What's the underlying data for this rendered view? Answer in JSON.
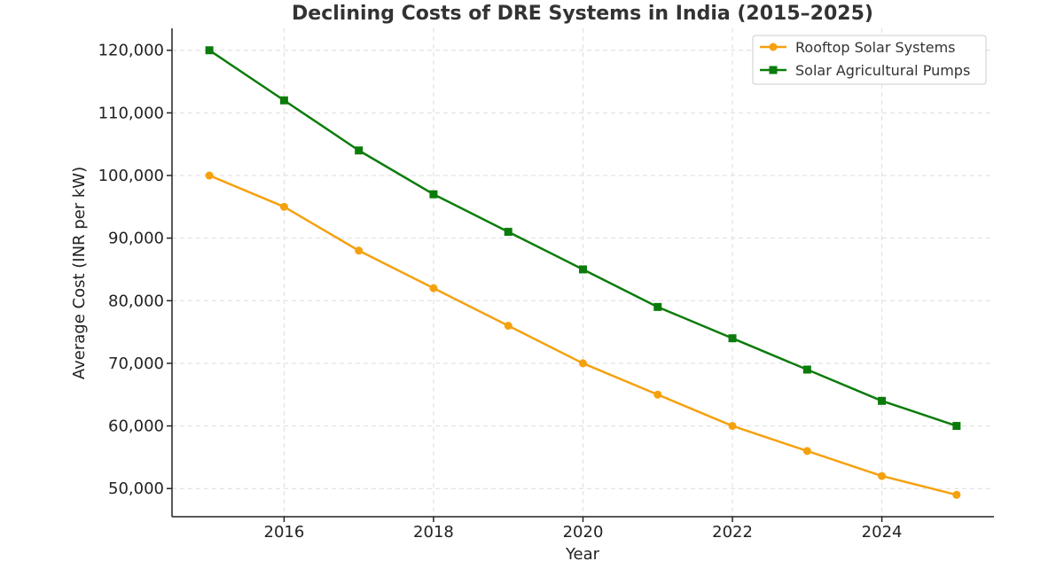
{
  "chart_data": {
    "type": "line",
    "title": "Declining Costs of DRE Systems in India (2015–2025)",
    "xlabel": "Year",
    "ylabel": "Average Cost (INR per kW)",
    "x": [
      2015,
      2016,
      2017,
      2018,
      2019,
      2020,
      2021,
      2022,
      2023,
      2024,
      2025
    ],
    "x_ticks": [
      2016,
      2018,
      2020,
      2022,
      2024
    ],
    "x_tick_labels": [
      "2016",
      "2018",
      "2020",
      "2022",
      "2024"
    ],
    "y_ticks": [
      50000,
      60000,
      70000,
      80000,
      90000,
      100000,
      110000,
      120000
    ],
    "y_tick_labels": [
      "50,000",
      "60,000",
      "70,000",
      "80,000",
      "90,000",
      "100,000",
      "110,000",
      "120,000"
    ],
    "xlim": [
      2014.5,
      2025.5
    ],
    "ylim": [
      45500,
      123500
    ],
    "grid": true,
    "legend_position": "top-right",
    "series": [
      {
        "name": "Rooftop Solar Systems",
        "color": "#f5a10f",
        "marker": "circle",
        "values": [
          100000,
          95000,
          88000,
          82000,
          76000,
          70000,
          65000,
          60000,
          56000,
          52000,
          49000
        ]
      },
      {
        "name": "Solar Agricultural Pumps",
        "color": "#0b7c0b",
        "marker": "square",
        "values": [
          120000,
          112000,
          104000,
          97000,
          91000,
          85000,
          79000,
          74000,
          69000,
          64000,
          60000
        ]
      }
    ]
  }
}
